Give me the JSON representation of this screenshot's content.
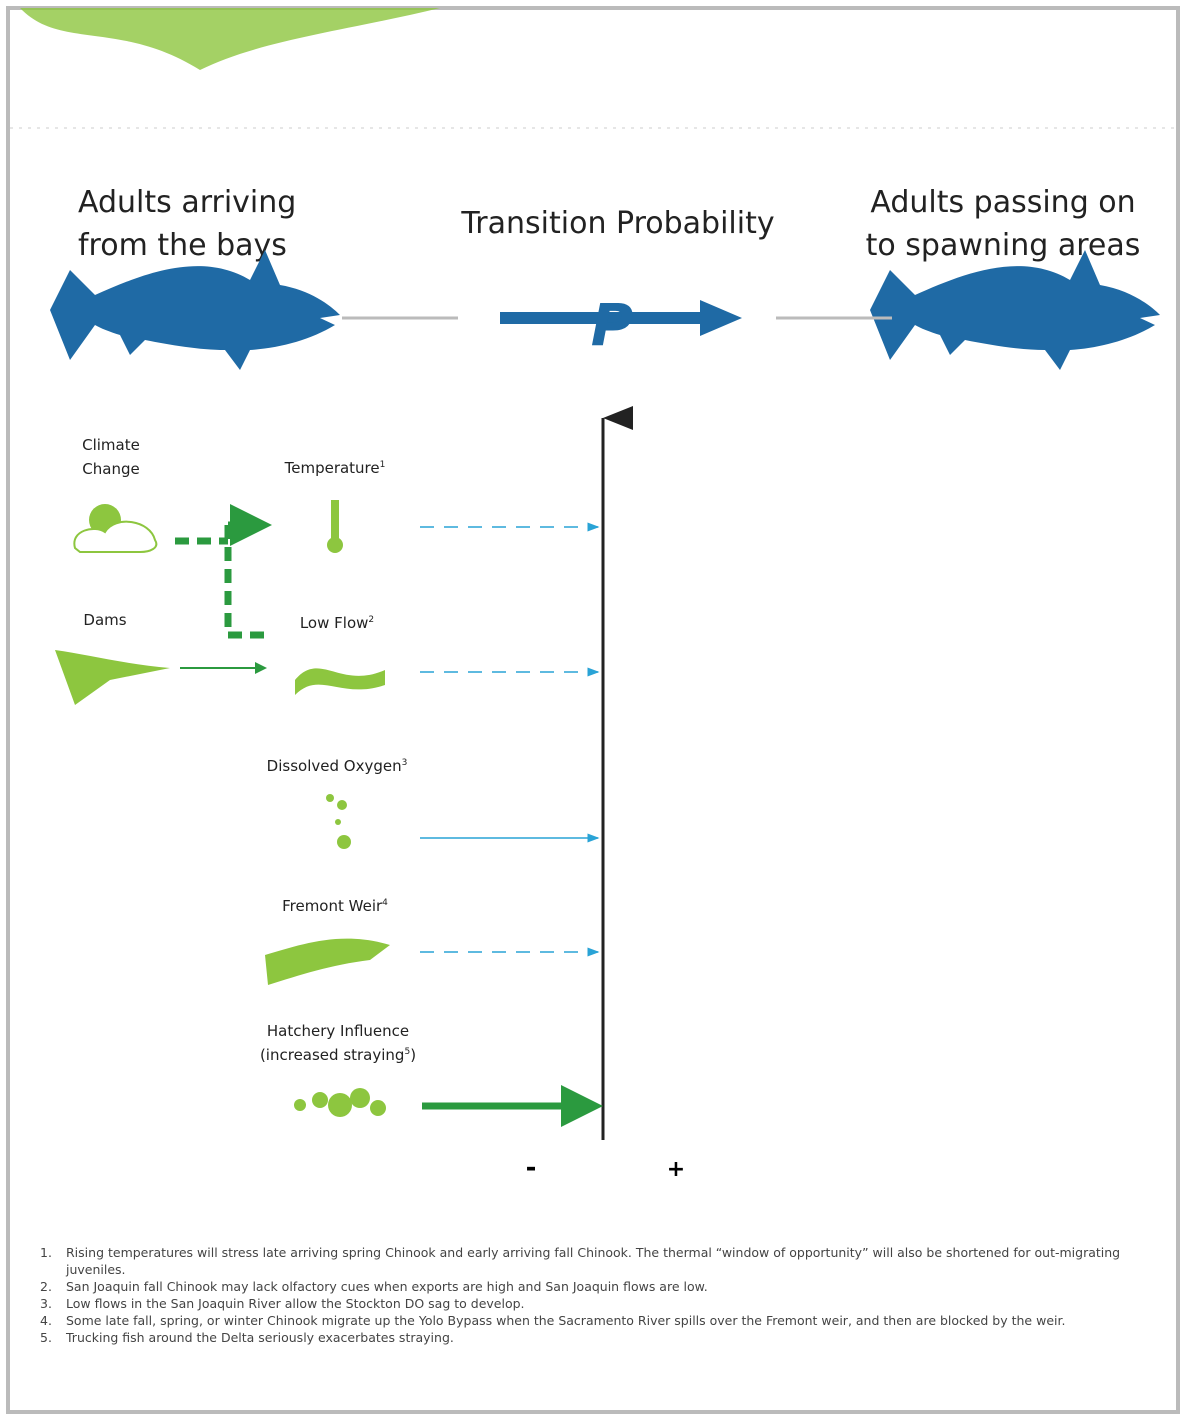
{
  "header": {
    "left_title": [
      "Adults arriving",
      "from the bays"
    ],
    "center_title": "Transition Probability",
    "p_symbol": "P",
    "right_title": [
      "Adults passing on",
      "to spawning areas"
    ]
  },
  "drivers": [
    {
      "label": [
        "Climate",
        "Change"
      ]
    },
    {
      "label": [
        "Dams"
      ]
    }
  ],
  "factors": [
    {
      "label": "Temperature",
      "note": "1"
    },
    {
      "label": "Low Flow",
      "note": "2"
    },
    {
      "label": "Dissolved Oxygen",
      "note": "3"
    },
    {
      "label": "Fremont Weir",
      "note": "4"
    },
    {
      "label": "Hatchery Influence",
      "sublabel_before": "(increased straying",
      "note": "5",
      "sublabel_after": ")"
    }
  ],
  "axis": {
    "minus": "-",
    "plus": "+"
  },
  "footnotes": [
    {
      "number": "1.",
      "text": "Rising temperatures will stress late arriving spring Chinook and early arriving fall Chinook.  The thermal “window of opportunity” will also be shortened for out-migrating juveniles."
    },
    {
      "number": "2.",
      "text": "San Joaquin fall Chinook may lack olfactory cues when exports are high and San Joaquin flows are low."
    },
    {
      "number": "3.",
      "text": "Low flows in the San Joaquin River allow the Stockton DO sag to develop."
    },
    {
      "number": "4.",
      "text": "Some late fall, spring, or winter Chinook migrate up the Yolo Bypass when the Sacramento River spills over the Fremont weir, and then are blocked by the weir."
    },
    {
      "number": "5.",
      "text": "Trucking fish around the Delta seriously exacerbates straying."
    }
  ]
}
